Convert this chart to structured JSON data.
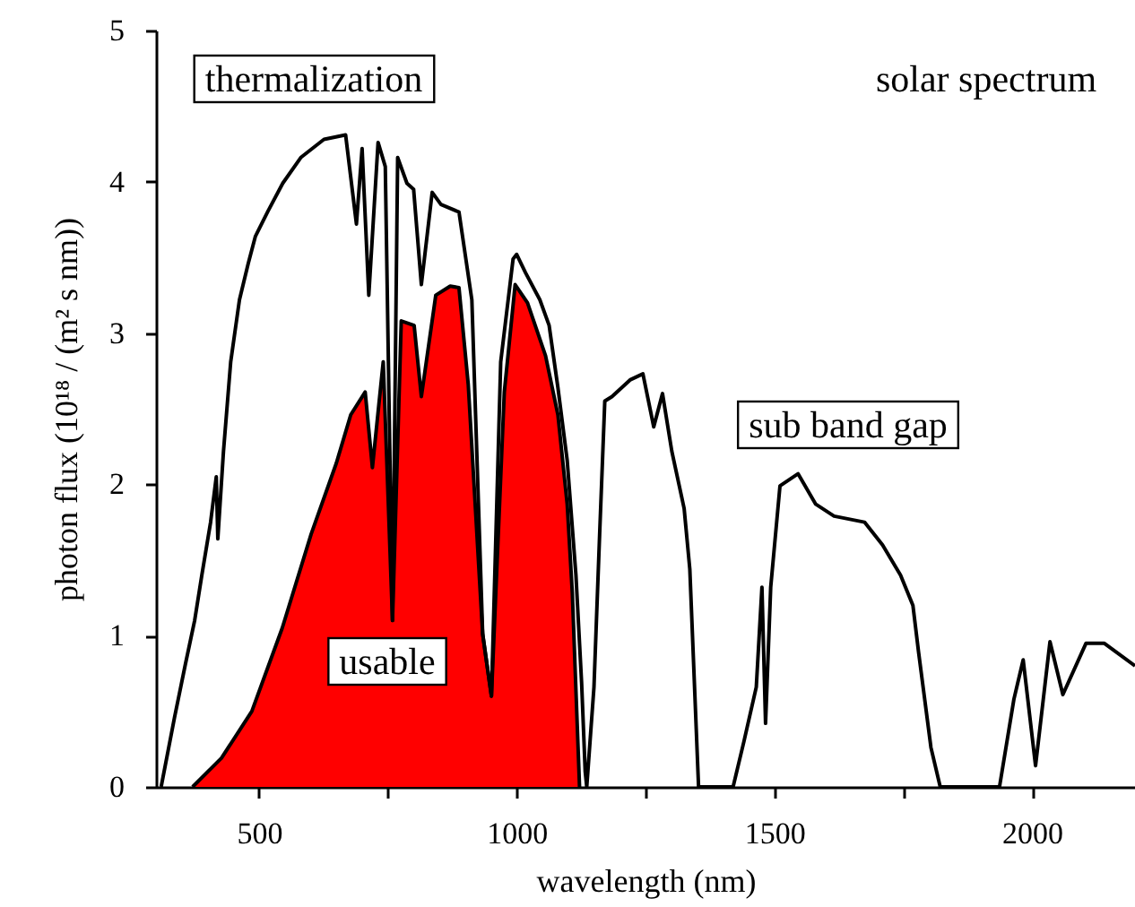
{
  "chart_data": {
    "type": "line",
    "xlabel": "wavelength  (nm)",
    "ylabel": "photon flux (10¹⁸ / (m² s nm))",
    "xlim": [
      300,
      2200
    ],
    "ylim": [
      0,
      5
    ],
    "xticks": [
      500,
      {
        "value": 750,
        "label": null
      },
      1000,
      {
        "value": 1250,
        "label": null
      },
      1500,
      {
        "value": 1750,
        "label": null
      },
      2000
    ],
    "yticks": [
      0,
      1,
      2,
      3,
      4,
      5
    ],
    "annotations": [
      "thermalization",
      "usable",
      "sub band gap",
      "solar spectrum"
    ],
    "series": [
      {
        "type": "line",
        "color": "#000000",
        "x": [
          310,
          336,
          357,
          375,
          389,
          406,
          417,
          420,
          431,
          445,
          462,
          479,
          493,
          518,
          546,
          581,
          626,
          668,
          689,
          700,
          713,
          731,
          745,
          759,
          769,
          787,
          800,
          815,
          836,
          853,
          888,
          913,
          934,
          951,
          969,
          993,
          1000,
          1017,
          1045,
          1063,
          1080,
          1098,
          1115,
          1126,
          1133,
          1136,
          1150,
          1161,
          1171,
          1185,
          1220,
          1245,
          1266,
          1283,
          1301,
          1325,
          1336,
          1353,
          1420,
          1441,
          1465,
          1476,
          1483,
          1493,
          1511,
          1546,
          1580,
          1616,
          1675,
          1710,
          1745,
          1769,
          1780,
          1804,
          1822,
          1937,
          1965,
          1983,
          2007,
          2035,
          2060,
          2105,
          2140,
          2200
        ],
        "values": [
          0,
          0.46,
          0.81,
          1.1,
          1.4,
          1.75,
          2.05,
          1.64,
          2.22,
          2.81,
          3.22,
          3.46,
          3.64,
          3.81,
          3.99,
          4.16,
          4.28,
          4.31,
          3.72,
          4.22,
          3.25,
          4.26,
          4.1,
          1.1,
          4.16,
          3.99,
          3.95,
          3.32,
          3.93,
          3.85,
          3.8,
          3.22,
          1.01,
          0.6,
          2.81,
          3.49,
          3.52,
          3.4,
          3.22,
          3.05,
          2.64,
          2.16,
          1.4,
          0.69,
          0.1,
          0,
          0.66,
          1.67,
          2.55,
          2.58,
          2.69,
          2.73,
          2.38,
          2.6,
          2.22,
          1.84,
          1.44,
          0,
          0,
          0.3,
          0.66,
          1.32,
          0.42,
          1.32,
          1.99,
          2.07,
          1.87,
          1.79,
          1.75,
          1.6,
          1.4,
          1.2,
          0.89,
          0.26,
          0,
          0,
          0.58,
          0.84,
          0.14,
          0.96,
          0.61,
          0.95,
          0.95,
          0.8
        ]
      },
      {
        "type": "area",
        "color": "#ff0000",
        "x": [
          371,
          427,
          486,
          545,
          601,
          650,
          678,
          706,
          720,
          741,
          759,
          776,
          801,
          815,
          843,
          871,
          888,
          906,
          934,
          951,
          976,
          997,
          1021,
          1056,
          1080,
          1098,
          1108,
          1122
        ],
        "values": [
          0,
          0.19,
          0.5,
          1.05,
          1.67,
          2.14,
          2.46,
          2.61,
          2.11,
          2.81,
          1.1,
          3.08,
          3.05,
          2.58,
          3.25,
          3.31,
          3.3,
          2.66,
          1.01,
          0.6,
          2.61,
          3.32,
          3.2,
          2.85,
          2.46,
          1.87,
          1.28,
          0
        ]
      }
    ]
  }
}
